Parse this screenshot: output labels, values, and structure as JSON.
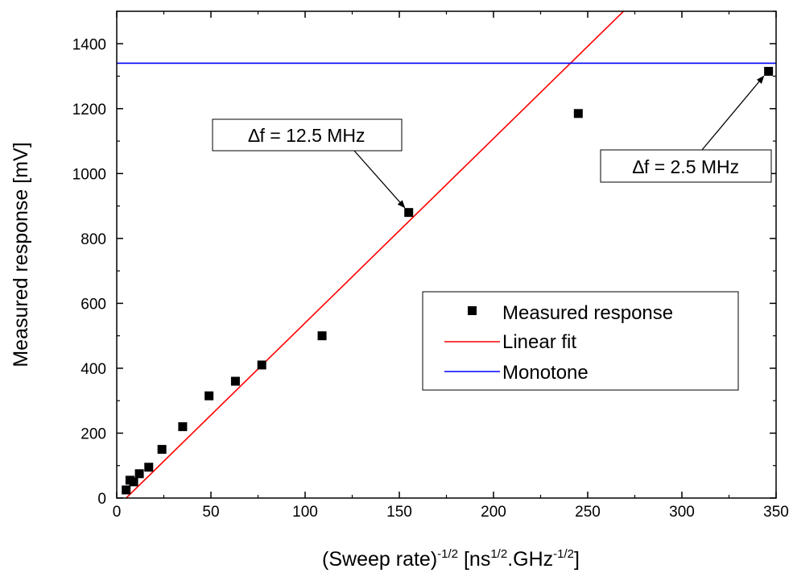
{
  "chart_data": {
    "type": "scatter",
    "title": "",
    "xlabel": {
      "base": "(Sweep rate)",
      "base_sup": "-1/2",
      "bracket_open": " [ns",
      "unit1_sup": "1/2",
      "mid": ".GHz",
      "unit2_sup": "-1/2",
      "bracket_close": "]"
    },
    "ylabel": "Measured response [mV]",
    "xlim": [
      0,
      350
    ],
    "ylim": [
      0,
      1500
    ],
    "xticks": [
      0,
      50,
      100,
      150,
      200,
      250,
      300,
      350
    ],
    "yticks": [
      0,
      200,
      400,
      600,
      800,
      1000,
      1200,
      1400
    ],
    "grid": false,
    "legend_position": "center-right",
    "series": [
      {
        "name": "Measured response",
        "kind": "scatter",
        "marker": "square",
        "color": "#000000",
        "x": [
          5,
          7,
          9,
          12,
          17,
          24,
          35,
          49,
          63,
          77,
          109,
          155,
          245,
          346
        ],
        "y": [
          25,
          55,
          50,
          75,
          95,
          150,
          220,
          315,
          360,
          410,
          500,
          880,
          1185,
          1315
        ]
      },
      {
        "name": "Linear fit",
        "kind": "line",
        "color": "#ff0000",
        "x": [
          5,
          269
        ],
        "y": [
          0,
          1500
        ]
      },
      {
        "name": "Monotone",
        "kind": "hline",
        "color": "#0000ff",
        "y": 1340
      }
    ],
    "annotations": [
      {
        "text": "∆f = 12.5 MHz",
        "x": 155,
        "y": 880
      },
      {
        "text": "∆f = 2.5 MHz",
        "x": 346,
        "y": 1315
      }
    ]
  }
}
